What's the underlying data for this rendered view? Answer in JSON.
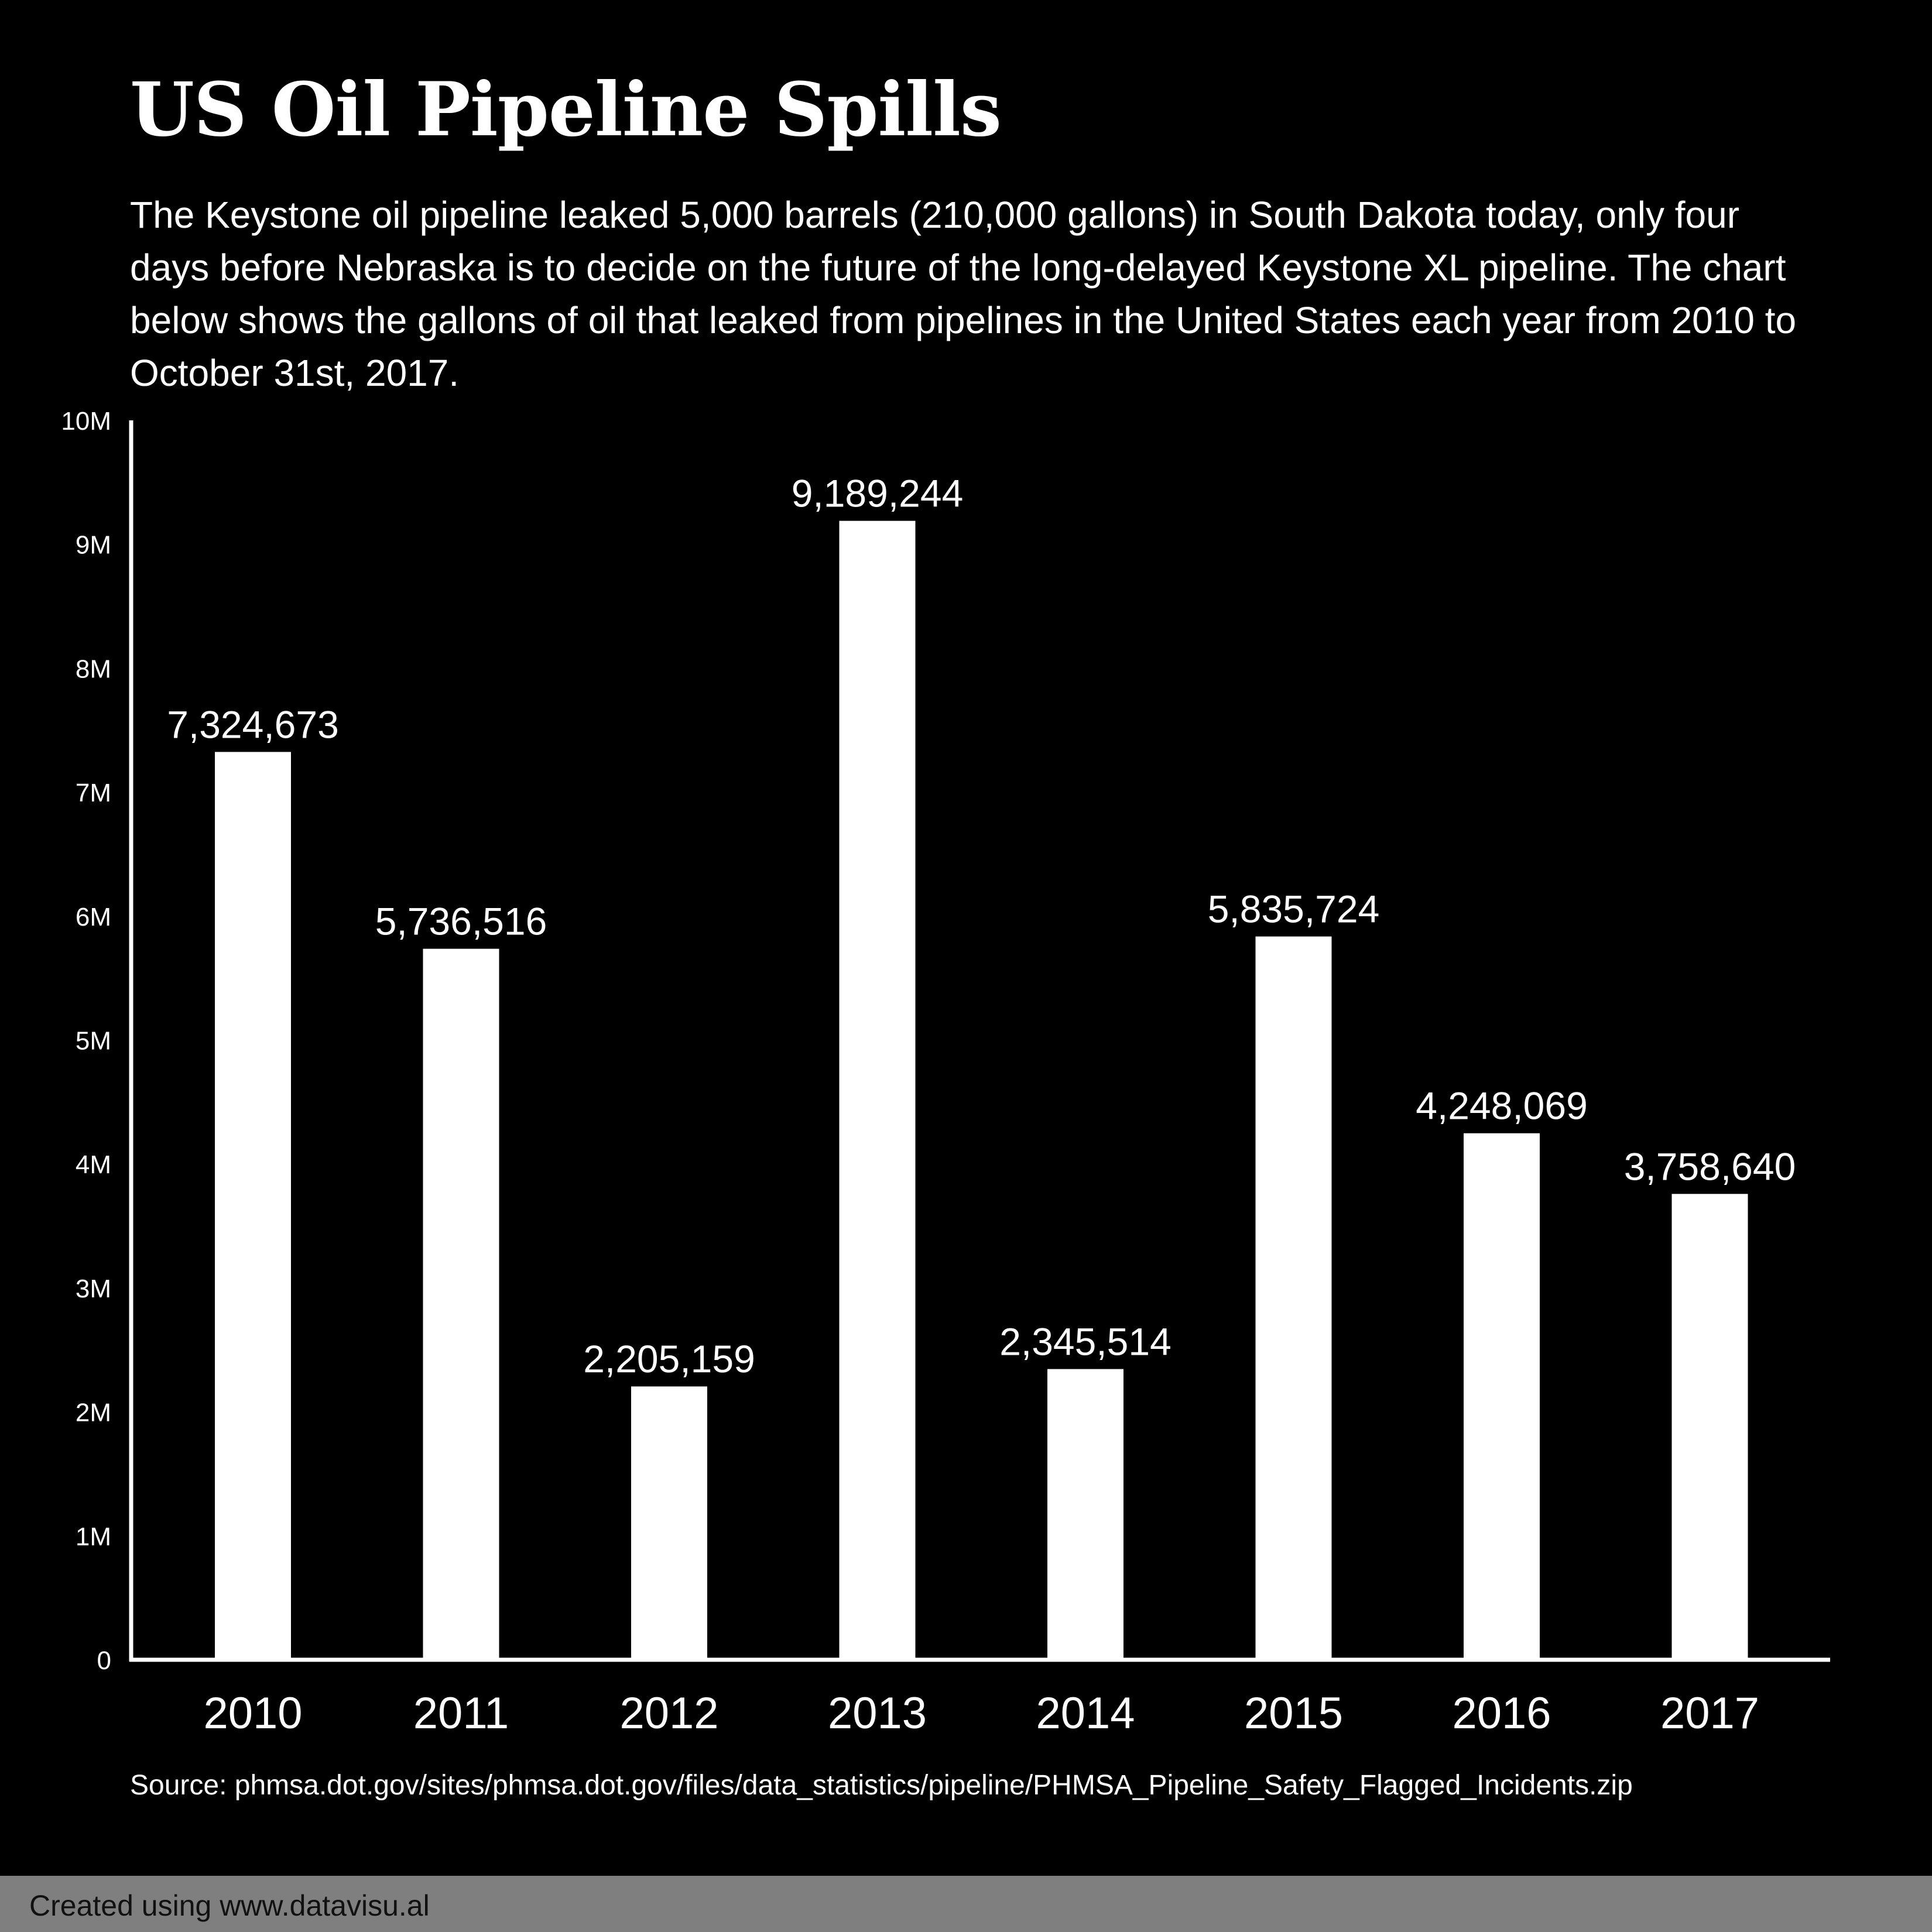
{
  "header": {
    "title": "US Oil Pipeline Spills",
    "description": "The Keystone oil pipeline leaked 5,000 barrels (210,000 gallons) in South Dakota today, only four days before Nebraska is to decide on the future of the long-delayed Keystone XL pipeline. The chart below shows the gallons of oil that leaked from pipelines in the United States each year from 2010 to October 31st, 2017."
  },
  "chart_data": {
    "type": "bar",
    "title": "US Oil Pipeline Spills",
    "xlabel": "",
    "ylabel": "",
    "categories": [
      "2010",
      "2011",
      "2012",
      "2013",
      "2014",
      "2015",
      "2016",
      "2017"
    ],
    "values": [
      7324673,
      5736516,
      2205159,
      9189244,
      2345514,
      5835724,
      4248069,
      3758640
    ],
    "data_labels": [
      "7,324,673",
      "5,736,516",
      "2,205,159",
      "9,189,244",
      "2,345,514",
      "5,835,724",
      "4,248,069",
      "3,758,640"
    ],
    "ylim": [
      0,
      10000000
    ],
    "yticks": [
      0,
      1000000,
      2000000,
      3000000,
      4000000,
      5000000,
      6000000,
      7000000,
      8000000,
      9000000,
      10000000
    ],
    "ytick_labels": [
      "0",
      "1M",
      "2M",
      "3M",
      "4M",
      "5M",
      "6M",
      "7M",
      "8M",
      "9M",
      "10M"
    ],
    "grid": false,
    "legend": "none",
    "colors": {
      "background": "#000000",
      "bar": "#ffffff",
      "text": "#ffffff"
    }
  },
  "source": "Source: phmsa.dot.gov/sites/phmsa.dot.gov/files/data_statistics/pipeline/PHMSA_Pipeline_Safety_Flagged_Incidents.zip",
  "footer": {
    "credit": "Created using www.datavisu.al",
    "bar_color": "#7f7f7f"
  }
}
